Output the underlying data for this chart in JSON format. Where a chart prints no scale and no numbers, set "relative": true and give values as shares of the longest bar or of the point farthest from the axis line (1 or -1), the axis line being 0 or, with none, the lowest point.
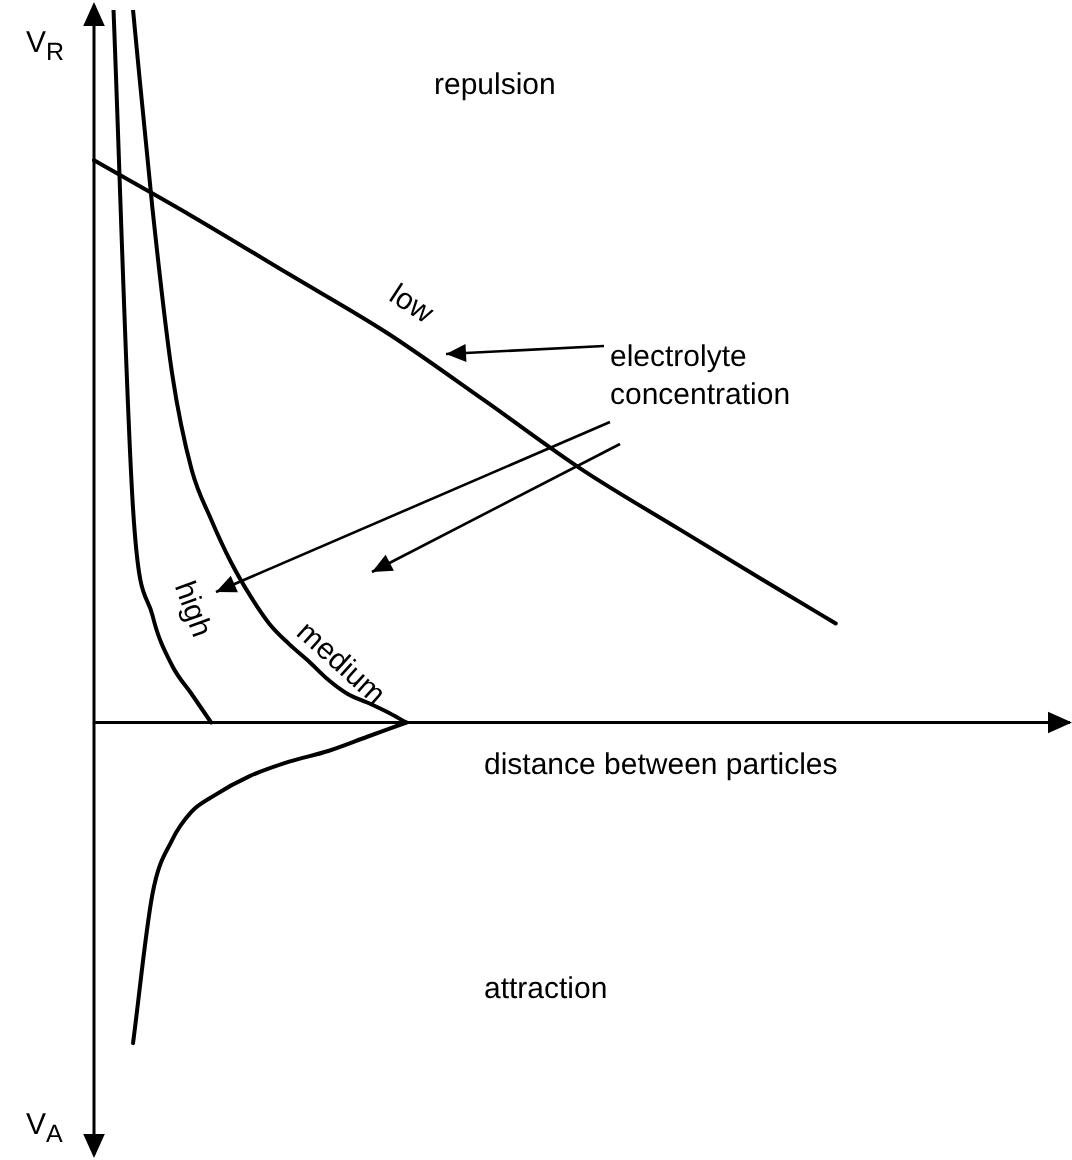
{
  "chart_data": {
    "type": "line",
    "relative": true,
    "xlabel": "distance between particles",
    "legend": false,
    "marker": "none",
    "line_style": "solid",
    "annotations": [
      "V$_{R}$",
      "V$_{A}$",
      "repulsion",
      "attraction",
      "electrolyte concentration"
    ],
    "categories": [
      null,
      null,
      null,
      null,
      null,
      null,
      null,
      null,
      null,
      null,
      null,
      null,
      null,
      null,
      null,
      null,
      null,
      null,
      null,
      null,
      null,
      null,
      null,
      null,
      null,
      null,
      null,
      null,
      null,
      null,
      null,
      null,
      null,
      null,
      null,
      null,
      null,
      null,
      null,
      null,
      null,
      null,
      null,
      null,
      null,
      null,
      null,
      null,
      null,
      null,
      null
    ],
    "series": [
      {
        "name": "low",
        "color": "#000000",
        "values": [
          0.789,
          null,
          null,
          null,
          null,
          0.711,
          null,
          null,
          null,
          null,
          0.629,
          null,
          null,
          null,
          null,
          0.547,
          null,
          null,
          null,
          null,
          0.452,
          null,
          null,
          null,
          null,
          0.355,
          null,
          null,
          null,
          null,
          0.271,
          null,
          null,
          null,
          null,
          0.188,
          null,
          null,
          0.139,
          null,
          null,
          null,
          null,
          null,
          null,
          null,
          null,
          null,
          null,
          null,
          null
        ]
      },
      {
        "name": "medium",
        "color": "#000000",
        "values": [
          null,
          null,
          1,
          0.72,
          0.49,
          0.355,
          0.285,
          0.226,
          0.178,
          0.138,
          0.11,
          0.086,
          0.06,
          0.04,
          0.028,
          0.015,
          0,
          null,
          null,
          null,
          null,
          null,
          null,
          null,
          null,
          null,
          null,
          null,
          null,
          null,
          null,
          null,
          null,
          null,
          null,
          null,
          null,
          null,
          null,
          null,
          null,
          null,
          null,
          null,
          null,
          null,
          null,
          null,
          null,
          null,
          null
        ]
      },
      {
        "name": "high",
        "color": "#000000",
        "values": [
          null,
          1,
          0.3,
          0.15,
          0.08,
          0.04,
          0,
          null,
          null,
          null,
          null,
          null,
          null,
          null,
          null,
          null,
          null,
          null,
          null,
          null,
          null,
          null,
          null,
          null,
          null,
          null,
          null,
          null,
          null,
          null,
          null,
          null,
          null,
          null,
          null,
          null,
          null,
          null,
          null,
          null,
          null,
          null,
          null,
          null,
          null,
          null,
          null,
          null,
          null,
          null,
          null
        ]
      },
      {
        "color": "#000000",
        "values": [
          null,
          null,
          -0.45,
          -0.24,
          -0.165,
          -0.125,
          -0.105,
          null,
          -0.075,
          null,
          -0.055,
          null,
          -0.04,
          null,
          -0.02,
          null,
          0,
          null,
          null,
          null,
          null,
          null,
          null,
          null,
          null,
          null,
          null,
          null,
          null,
          null,
          null,
          null,
          null,
          null,
          null,
          null,
          null,
          null,
          null,
          null,
          null,
          null,
          null,
          null,
          null,
          null,
          null,
          null,
          null,
          null,
          null
        ]
      }
    ]
  }
}
